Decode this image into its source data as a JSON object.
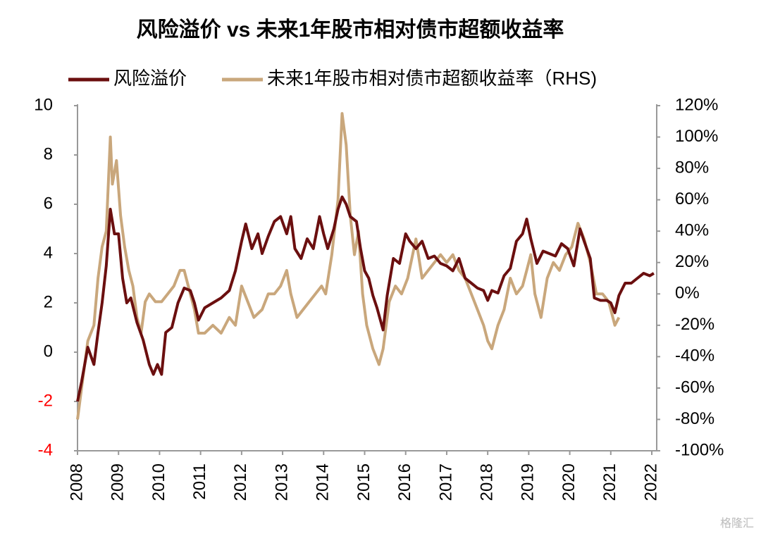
{
  "chart_data": {
    "type": "line",
    "title": "风险溢价 vs 未来1年股市相对债市超额收益率",
    "watermark": "格隆汇",
    "xlim": [
      2008,
      2022.12
    ],
    "xticks": [
      2008,
      2009,
      2010,
      2011,
      2012,
      2013,
      2014,
      2015,
      2016,
      2017,
      2018,
      2019,
      2020,
      2021,
      2022
    ],
    "ylim": [
      -4,
      10
    ],
    "yticks": [
      -4,
      -2,
      0,
      2,
      4,
      6,
      8,
      10
    ],
    "negative_tick_color": "#ff0000",
    "y2lim": [
      -100,
      120
    ],
    "y2ticks": [
      {
        "value": -100,
        "label": "-100%"
      },
      {
        "value": -80,
        "label": "-80%"
      },
      {
        "value": -60,
        "label": "-60%"
      },
      {
        "value": -40,
        "label": "-40%"
      },
      {
        "value": -20,
        "label": "-20%"
      },
      {
        "value": 0,
        "label": "0%"
      },
      {
        "value": 20,
        "label": "20%"
      },
      {
        "value": 40,
        "label": "40%"
      },
      {
        "value": 60,
        "label": "60%"
      },
      {
        "value": 80,
        "label": "80%"
      },
      {
        "value": 100,
        "label": "100%"
      },
      {
        "value": 120,
        "label": "120%"
      }
    ],
    "grid": false,
    "legend": "top",
    "series": [
      {
        "name": "风险溢价",
        "color": "#6b0f0f",
        "axis": "y",
        "x": [
          2008.0,
          2008.1,
          2008.25,
          2008.4,
          2008.5,
          2008.6,
          2008.7,
          2008.8,
          2008.9,
          2009.0,
          2009.1,
          2009.2,
          2009.3,
          2009.45,
          2009.6,
          2009.75,
          2009.85,
          2009.95,
          2010.05,
          2010.15,
          2010.3,
          2010.45,
          2010.6,
          2010.75,
          2010.85,
          2010.95,
          2011.1,
          2011.3,
          2011.5,
          2011.7,
          2011.85,
          2012.0,
          2012.1,
          2012.25,
          2012.4,
          2012.5,
          2012.65,
          2012.8,
          2012.95,
          2013.1,
          2013.2,
          2013.3,
          2013.45,
          2013.6,
          2013.75,
          2013.9,
          2014.0,
          2014.1,
          2014.25,
          2014.35,
          2014.45,
          2014.55,
          2014.65,
          2014.8,
          2014.9,
          2015.0,
          2015.1,
          2015.2,
          2015.3,
          2015.45,
          2015.55,
          2015.7,
          2015.85,
          2016.0,
          2016.1,
          2016.25,
          2016.4,
          2016.55,
          2016.7,
          2016.85,
          2017.0,
          2017.15,
          2017.3,
          2017.45,
          2017.6,
          2017.75,
          2017.9,
          2018.0,
          2018.1,
          2018.25,
          2018.4,
          2018.55,
          2018.7,
          2018.85,
          2018.95,
          2019.05,
          2019.2,
          2019.35,
          2019.5,
          2019.65,
          2019.8,
          2019.95,
          2020.1,
          2020.25,
          2020.35,
          2020.5,
          2020.6,
          2020.75,
          2020.9,
          2021.0,
          2021.1,
          2021.2,
          2021.35,
          2021.5,
          2021.65,
          2021.8,
          2021.95,
          2022.05
        ],
        "values": [
          -2,
          -1.2,
          0.2,
          -0.5,
          0.8,
          2,
          3.5,
          5.8,
          4.8,
          4.8,
          3,
          2,
          2.2,
          1.2,
          0.5,
          -0.5,
          -0.9,
          -0.5,
          -0.9,
          0.8,
          1,
          2,
          2.6,
          2.5,
          2,
          1.3,
          1.8,
          2,
          2.2,
          2.5,
          3.3,
          4.5,
          5.2,
          4.2,
          4.8,
          4,
          4.7,
          5.3,
          5.5,
          4.8,
          5.5,
          4.2,
          3.8,
          4.6,
          4.2,
          5.5,
          4.8,
          4.2,
          5,
          5.8,
          6.3,
          6,
          5.5,
          5.3,
          4.2,
          3.3,
          3,
          2.3,
          1.8,
          0.9,
          2.3,
          3.8,
          3.6,
          4.8,
          4.5,
          4.2,
          4.5,
          3.8,
          3.9,
          3.6,
          3.5,
          3.3,
          3.8,
          3,
          2.8,
          2.6,
          2.5,
          2.1,
          2.5,
          2.4,
          3.1,
          3.4,
          4.5,
          4.8,
          5.4,
          4.6,
          3.6,
          4.1,
          4,
          3.9,
          4.4,
          4.2,
          3.5,
          5,
          4.5,
          3.8,
          2.2,
          2.1,
          2.1,
          2,
          1.6,
          2.3,
          2.8,
          2.8,
          3,
          3.2,
          3.1,
          3.2
        ]
      },
      {
        "name": "未来1年股市相对债市超额收益率（RHS)",
        "color": "#c9a77c",
        "axis": "y2",
        "x": [
          2008.0,
          2008.1,
          2008.25,
          2008.4,
          2008.5,
          2008.6,
          2008.7,
          2008.8,
          2008.85,
          2008.95,
          2009.05,
          2009.15,
          2009.25,
          2009.35,
          2009.45,
          2009.55,
          2009.65,
          2009.75,
          2009.9,
          2010.05,
          2010.2,
          2010.35,
          2010.5,
          2010.6,
          2010.7,
          2010.85,
          2010.95,
          2011.1,
          2011.3,
          2011.5,
          2011.7,
          2011.85,
          2012.0,
          2012.15,
          2012.3,
          2012.5,
          2012.65,
          2012.8,
          2012.95,
          2013.1,
          2013.2,
          2013.35,
          2013.5,
          2013.65,
          2013.8,
          2013.95,
          2014.05,
          2014.2,
          2014.35,
          2014.45,
          2014.55,
          2014.65,
          2014.75,
          2014.85,
          2014.95,
          2015.05,
          2015.2,
          2015.35,
          2015.45,
          2015.6,
          2015.75,
          2015.9,
          2016.05,
          2016.25,
          2016.4,
          2016.55,
          2016.7,
          2016.85,
          2017.0,
          2017.15,
          2017.3,
          2017.45,
          2017.6,
          2017.75,
          2017.9,
          2018.0,
          2018.1,
          2018.25,
          2018.4,
          2018.55,
          2018.7,
          2018.85,
          2018.95,
          2019.05,
          2019.15,
          2019.3,
          2019.45,
          2019.6,
          2019.75,
          2019.9,
          2020.05,
          2020.2,
          2020.35,
          2020.5,
          2020.65,
          2020.8,
          2020.95,
          2021.1,
          2021.2
        ],
        "values": [
          -80,
          -60,
          -30,
          -20,
          10,
          30,
          40,
          100,
          70,
          85,
          50,
          30,
          15,
          5,
          -15,
          -25,
          -5,
          0,
          -5,
          -5,
          0,
          5,
          15,
          15,
          5,
          -10,
          -25,
          -25,
          -20,
          -25,
          -15,
          -20,
          5,
          -5,
          -15,
          -10,
          0,
          0,
          5,
          15,
          0,
          -15,
          -10,
          -5,
          0,
          5,
          0,
          25,
          60,
          115,
          95,
          50,
          25,
          40,
          0,
          -20,
          -35,
          -45,
          -35,
          -5,
          5,
          0,
          10,
          35,
          10,
          15,
          20,
          25,
          20,
          25,
          15,
          10,
          0,
          -10,
          -20,
          -30,
          -35,
          -20,
          -10,
          10,
          0,
          5,
          15,
          25,
          0,
          -15,
          10,
          20,
          15,
          25,
          30,
          45,
          35,
          20,
          0,
          0,
          -5,
          -20,
          -15
        ]
      }
    ]
  }
}
